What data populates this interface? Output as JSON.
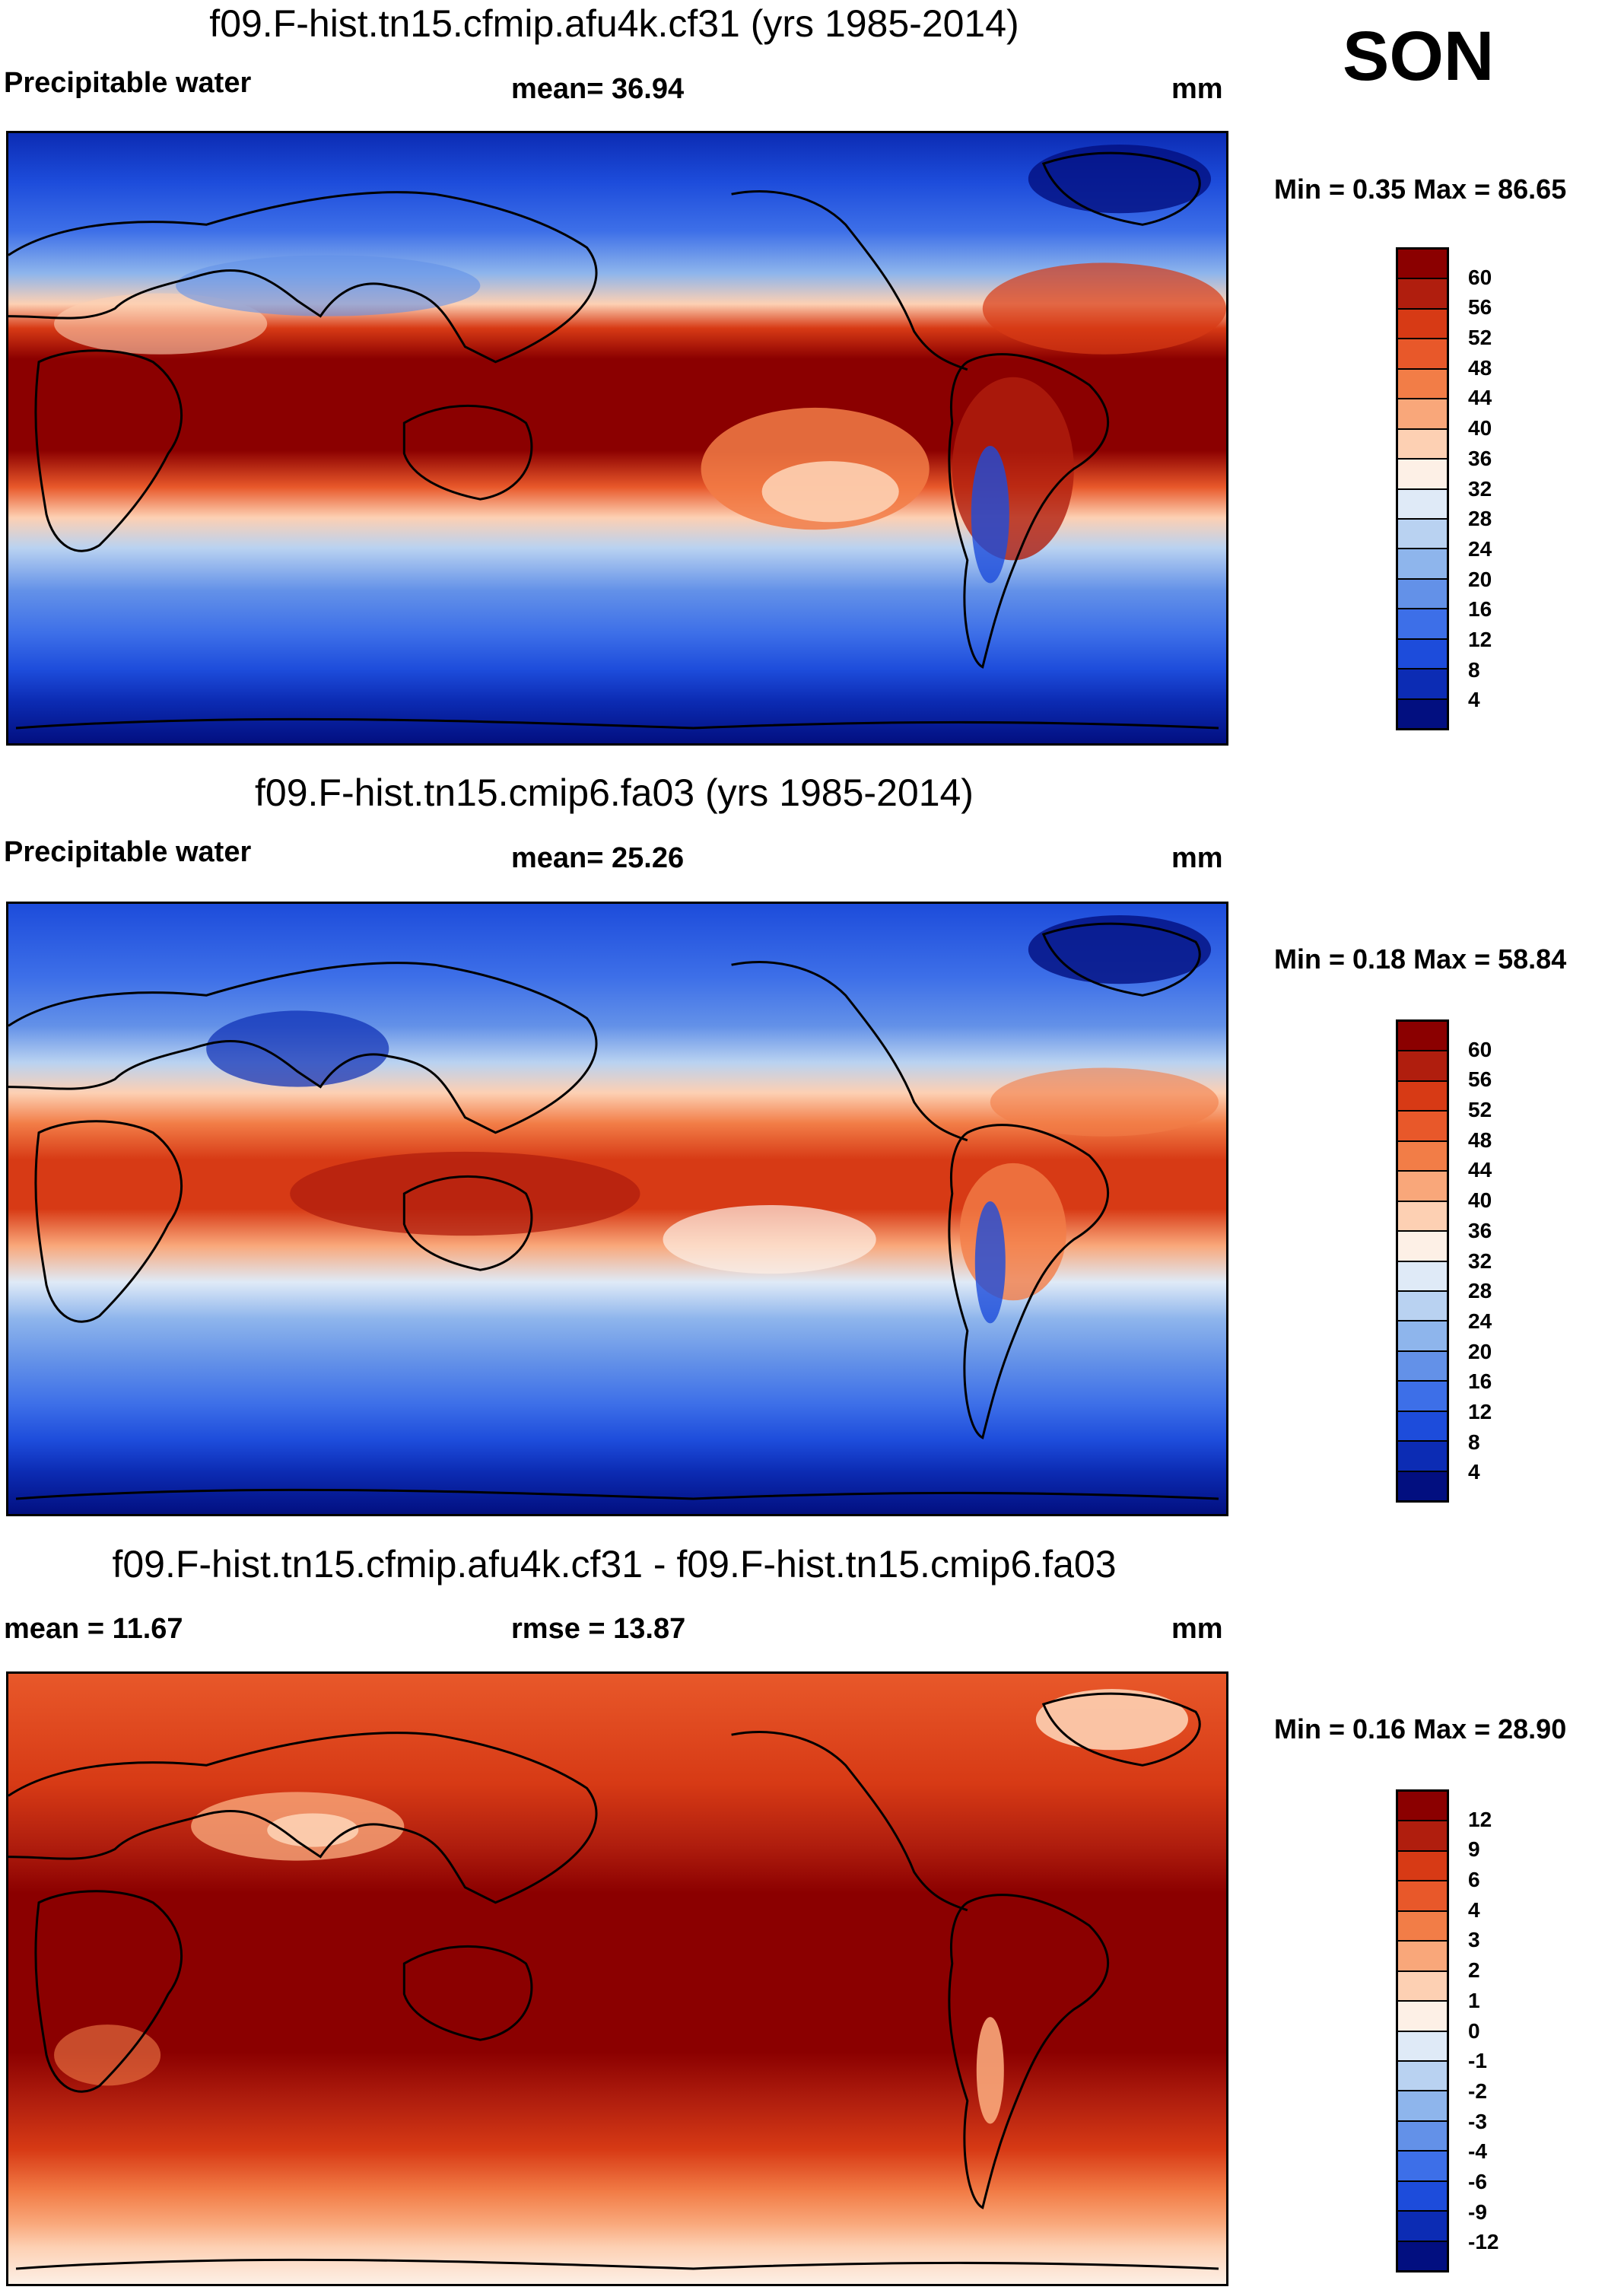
{
  "season": "SON",
  "units": "mm",
  "panels": [
    {
      "title": "f09.F-hist.tn15.cfmip.afu4k.cf31 (yrs 1985-2014)",
      "left_label": "Precipitable water",
      "center_label": "mean=  36.94",
      "right_label": "mm",
      "minmax": "Min =   0.35 Max =  86.65",
      "min": 0.35,
      "max": 86.65,
      "mean": 36.94,
      "colorbar": {
        "colors": [
          "#8b0000",
          "#b01e0e",
          "#d73a15",
          "#e8582a",
          "#f27d47",
          "#f9a77a",
          "#fdd0b3",
          "#fdf0e6",
          "#dfeaf7",
          "#b9d2f1",
          "#8eb5ec",
          "#6391e8",
          "#3d6fe8",
          "#1d4cdb",
          "#0c2cb4",
          "#020f80"
        ],
        "labels": [
          "60",
          "56",
          "52",
          "48",
          "44",
          "40",
          "36",
          "32",
          "28",
          "24",
          "20",
          "16",
          "12",
          "8",
          "4"
        ]
      }
    },
    {
      "title": "f09.F-hist.tn15.cmip6.fa03 (yrs 1985-2014)",
      "left_label": "Precipitable water",
      "center_label": "mean=  25.26",
      "right_label": "mm",
      "minmax": "Min =   0.18 Max =  58.84",
      "min": 0.18,
      "max": 58.84,
      "mean": 25.26,
      "colorbar": {
        "colors": [
          "#8b0000",
          "#b01e0e",
          "#d73a15",
          "#e8582a",
          "#f27d47",
          "#f9a77a",
          "#fdd0b3",
          "#fdf0e6",
          "#dfeaf7",
          "#b9d2f1",
          "#8eb5ec",
          "#6391e8",
          "#3d6fe8",
          "#1d4cdb",
          "#0c2cb4",
          "#020f80"
        ],
        "labels": [
          "60",
          "56",
          "52",
          "48",
          "44",
          "40",
          "36",
          "32",
          "28",
          "24",
          "20",
          "16",
          "12",
          "8",
          "4"
        ]
      }
    },
    {
      "title": "f09.F-hist.tn15.cfmip.afu4k.cf31 - f09.F-hist.tn15.cmip6.fa03",
      "left_label": "mean =  11.67",
      "center_label": "rmse =  13.87",
      "right_label": "mm",
      "minmax": "Min =   0.16 Max =  28.90",
      "min": 0.16,
      "max": 28.9,
      "mean": 11.67,
      "rmse": 13.87,
      "colorbar": {
        "colors": [
          "#8b0000",
          "#b01e0e",
          "#d73a15",
          "#e8582a",
          "#f27d47",
          "#f9a77a",
          "#fdd0b3",
          "#fdf0e6",
          "#dfeaf7",
          "#b9d2f1",
          "#8eb5ec",
          "#6391e8",
          "#3d6fe8",
          "#1d4cdb",
          "#0c2cb4",
          "#020f80"
        ],
        "labels": [
          "12",
          "9",
          "6",
          "4",
          "3",
          "2",
          "1",
          "0",
          "-1",
          "-2",
          "-3",
          "-4",
          "-6",
          "-9",
          "-12"
        ]
      }
    }
  ]
}
